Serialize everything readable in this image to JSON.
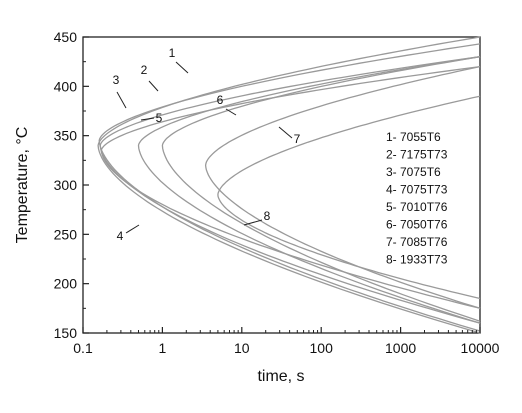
{
  "chart_data": {
    "type": "line",
    "title": "",
    "xlabel": "time, s",
    "ylabel": "Temperature, °C",
    "x_scale": "log",
    "xlim": [
      0.1,
      10000
    ],
    "ylim": [
      150,
      450
    ],
    "x_ticks": [
      "0.1",
      "1",
      "10",
      "100",
      "1000",
      "10000"
    ],
    "y_ticks": [
      "150",
      "200",
      "250",
      "300",
      "350",
      "400",
      "450"
    ],
    "grid": false,
    "legend_position": "right",
    "legend_entries": [
      "1- 7055T6",
      "2- 7175T73",
      "3- 7075T6",
      "4- 7075T73",
      "5- 7010T76",
      "6- 7050T76",
      "7- 7085T76",
      "8- 1933T73"
    ],
    "series": [
      {
        "label": "1",
        "nose": [
          0.155,
          340
        ],
        "top": [
          10000,
          450
        ],
        "bottom": [
          10000,
          150
        ]
      },
      {
        "label": "2",
        "nose": [
          0.16,
          345
        ],
        "top": [
          10000,
          443
        ],
        "bottom": [
          10000,
          152
        ]
      },
      {
        "label": "3",
        "nose": [
          0.165,
          340
        ],
        "top": [
          10000,
          430
        ],
        "bottom": [
          10000,
          160
        ]
      },
      {
        "label": "4",
        "nose": [
          0.17,
          335
        ],
        "top": [
          10000,
          420
        ],
        "bottom": [
          10000,
          175
        ]
      },
      {
        "label": "5",
        "nose": [
          0.5,
          340
        ],
        "top": [
          10000,
          430
        ],
        "bottom": [
          10000,
          160
        ]
      },
      {
        "label": "6",
        "nose": [
          1.0,
          340
        ],
        "top": [
          10000,
          430
        ],
        "bottom": [
          10000,
          162
        ]
      },
      {
        "label": "7",
        "nose": [
          3.5,
          320
        ],
        "top": [
          10000,
          420
        ],
        "bottom": [
          10000,
          175
        ]
      },
      {
        "label": "8",
        "nose": [
          5.0,
          290
        ],
        "top": [
          10000,
          390
        ],
        "bottom": [
          10000,
          185
        ]
      }
    ]
  }
}
